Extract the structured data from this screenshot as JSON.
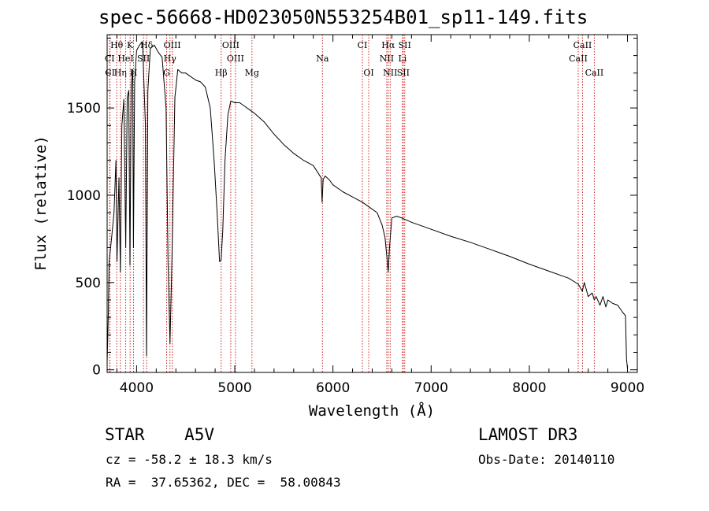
{
  "chart_data": {
    "type": "line",
    "title": "spec-56668-HD023050N553254B01_sp11-149.fits",
    "xlabel": "Wavelength (Å)",
    "ylabel": "Flux (relative)",
    "xlim": [
      3700,
      9100
    ],
    "ylim": [
      -15,
      1920
    ],
    "x_ticks": [
      4000,
      5000,
      6000,
      7000,
      8000,
      9000
    ],
    "x_tick_labels": [
      "4000",
      "5000",
      "6000",
      "7000",
      "8000",
      "9000"
    ],
    "y_ticks": [
      0,
      500,
      1000,
      1500
    ],
    "y_tick_labels": [
      "0",
      "500",
      "1000",
      "1500"
    ],
    "series": [
      {
        "name": "spectrum",
        "x": [
          3700,
          3712,
          3720,
          3735,
          3750,
          3770,
          3790,
          3800,
          3820,
          3835,
          3850,
          3870,
          3889,
          3905,
          3920,
          3933,
          3945,
          3960,
          3968,
          3980,
          4000,
          4030,
          4060,
          4090,
          4101,
          4115,
          4140,
          4180,
          4220,
          4260,
          4300,
          4320,
          4340,
          4360,
          4390,
          4420,
          4460,
          4500,
          4550,
          4600,
          4650,
          4700,
          4750,
          4790,
          4820,
          4845,
          4861,
          4878,
          4900,
          4930,
          4960,
          5000,
          5050,
          5100,
          5150,
          5200,
          5300,
          5400,
          5500,
          5600,
          5700,
          5800,
          5880,
          5890,
          5900,
          5920,
          5960,
          6000,
          6100,
          6200,
          6300,
          6350,
          6400,
          6450,
          6500,
          6530,
          6550,
          6563,
          6576,
          6600,
          6650,
          6700,
          6800,
          7000,
          7200,
          7400,
          7600,
          7800,
          8000,
          8200,
          8400,
          8500,
          8540,
          8560,
          8600,
          8640,
          8662,
          8680,
          8720,
          8750,
          8780,
          8800,
          8850,
          8900,
          8950,
          8980,
          8990,
          9000
        ],
        "values": [
          40,
          320,
          620,
          700,
          780,
          900,
          1200,
          620,
          1100,
          560,
          1400,
          1550,
          700,
          1560,
          1600,
          600,
          1620,
          1720,
          700,
          1650,
          1830,
          1860,
          1880,
          1400,
          80,
          1600,
          1840,
          1860,
          1820,
          1790,
          1500,
          620,
          150,
          640,
          1560,
          1720,
          1700,
          1700,
          1680,
          1660,
          1650,
          1620,
          1500,
          1200,
          900,
          620,
          630,
          800,
          1200,
          1460,
          1540,
          1530,
          1530,
          1510,
          1490,
          1470,
          1420,
          1350,
          1290,
          1240,
          1200,
          1170,
          1100,
          960,
          1090,
          1110,
          1090,
          1060,
          1020,
          990,
          960,
          940,
          920,
          900,
          830,
          760,
          640,
          560,
          700,
          870,
          880,
          870,
          845,
          805,
          765,
          730,
          690,
          650,
          605,
          565,
          525,
          490,
          450,
          500,
          420,
          440,
          400,
          420,
          370,
          420,
          360,
          400,
          380,
          370,
          330,
          310,
          60,
          10
        ]
      }
    ],
    "line_markers": [
      {
        "label": "Hθ",
        "wavelength": 3798,
        "row": 0
      },
      {
        "label": "K",
        "wavelength": 3934,
        "row": 0
      },
      {
        "label": "Hδ",
        "wavelength": 4102,
        "row": 0
      },
      {
        "label": "OIII",
        "wavelength": 4363,
        "row": 0
      },
      {
        "label": "OIII",
        "wavelength": 4959,
        "row": 0
      },
      {
        "label": "CI",
        "wavelength": 6300,
        "row": 0
      },
      {
        "label": "Hα",
        "wavelength": 6563,
        "row": 0
      },
      {
        "label": "SII",
        "wavelength": 6731,
        "row": 0
      },
      {
        "label": "CaII",
        "wavelength": 8542,
        "row": 0
      },
      {
        "label": "CI",
        "wavelength": 3726,
        "row": 1
      },
      {
        "label": "HeI",
        "wavelength": 3889,
        "row": 1
      },
      {
        "label": "SII",
        "wavelength": 4070,
        "row": 1
      },
      {
        "label": "Hγ",
        "wavelength": 4340,
        "row": 1
      },
      {
        "label": "OIII",
        "wavelength": 5007,
        "row": 1
      },
      {
        "label": "Na",
        "wavelength": 5893,
        "row": 1
      },
      {
        "label": "NII",
        "wavelength": 6548,
        "row": 1
      },
      {
        "label": "Li",
        "wavelength": 6708,
        "row": 1
      },
      {
        "label": "CaII",
        "wavelength": 8498,
        "row": 1
      },
      {
        "label": "CI",
        "wavelength": 3729,
        "row": 2
      },
      {
        "label": "Hη",
        "wavelength": 3835,
        "row": 2
      },
      {
        "label": "H",
        "wavelength": 3969,
        "row": 2
      },
      {
        "label": "G",
        "wavelength": 4306,
        "row": 2
      },
      {
        "label": "Hβ",
        "wavelength": 4861,
        "row": 2
      },
      {
        "label": "Mg",
        "wavelength": 5175,
        "row": 2
      },
      {
        "label": "OI",
        "wavelength": 6364,
        "row": 2
      },
      {
        "label": "NII",
        "wavelength": 6583,
        "row": 2
      },
      {
        "label": "SII",
        "wavelength": 6716,
        "row": 2
      },
      {
        "label": "CaII",
        "wavelength": 8662,
        "row": 2
      }
    ]
  },
  "info": {
    "class_line": "STAR    A5V",
    "survey": "LAMOST DR3",
    "redshift": "cz = -58.2 ± 18.3 km/s",
    "obs_date": "Obs-Date: 20140110",
    "coords": "RA =  37.65362, DEC =  58.00843"
  },
  "colors": {
    "marker": "#cc2222",
    "line": "#000000"
  }
}
